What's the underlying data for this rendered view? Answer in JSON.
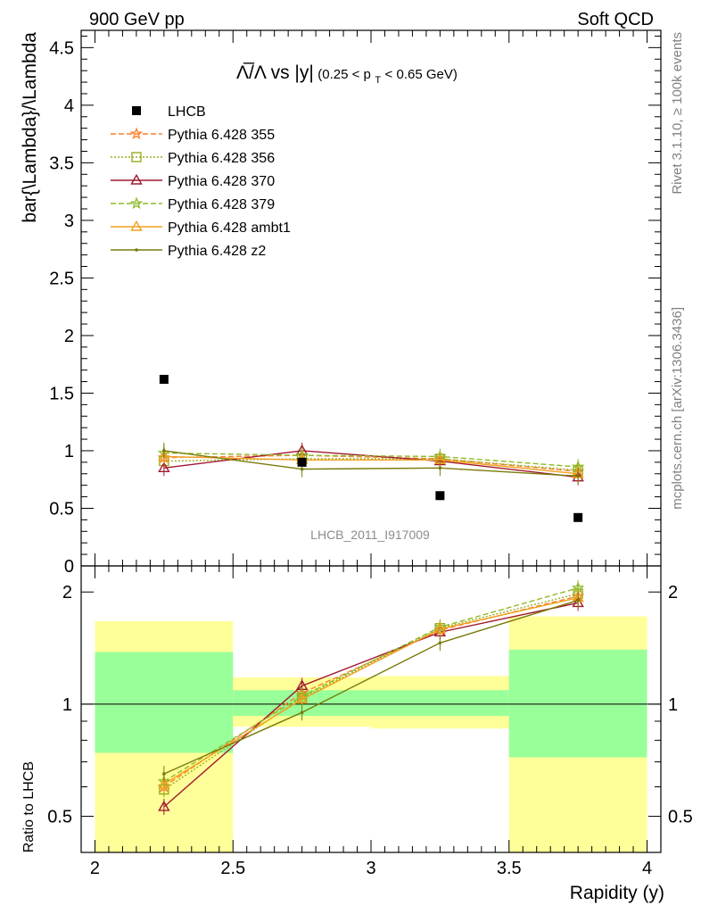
{
  "header": {
    "left": "900 GeV pp",
    "right": "Soft QCD"
  },
  "side_labels": {
    "rivet": "Rivet 3.1.10, ≥ 100k events",
    "mcplots": "mcplots.cern.ch [arXiv:1306.3436]"
  },
  "chart_data": [
    {
      "type": "scatter",
      "panel": "main",
      "title_main": "Λ̅/Λ vs |y|",
      "title_cut": "(0.25 < p",
      "title_cut_sub": "T",
      "title_cut_end": " < 0.65 GeV)",
      "ylabel": "bar{\\Lambda}/\\Lambda",
      "watermark": "LHCB_2011_I917009",
      "xlim": [
        1.95,
        4.05
      ],
      "ylim": [
        0,
        4.65
      ],
      "yticks": [
        "0",
        "0.5",
        "1",
        "1.5",
        "2",
        "2.5",
        "3",
        "3.5",
        "4",
        "4.5"
      ],
      "x": [
        2.25,
        2.75,
        3.25,
        3.75
      ],
      "series": [
        {
          "name": "LHCB",
          "color": "#000000",
          "style": "data",
          "values": [
            1.62,
            0.9,
            0.61,
            0.42
          ]
        },
        {
          "name": "Pythia 6.428 355",
          "color": "#ff7f2a",
          "style": "dashed",
          "marker": "star",
          "values": [
            0.94,
            0.96,
            0.93,
            0.82
          ]
        },
        {
          "name": "Pythia 6.428 356",
          "color": "#9aac1c",
          "style": "dotted",
          "marker": "square",
          "values": [
            0.91,
            0.93,
            0.93,
            0.83
          ]
        },
        {
          "name": "Pythia 6.428 370",
          "color": "#a0192e",
          "style": "solid",
          "marker": "triangle",
          "values": [
            0.85,
            1.0,
            0.91,
            0.77
          ]
        },
        {
          "name": "Pythia 6.428 379",
          "color": "#8fba2a",
          "style": "dashed",
          "marker": "star",
          "values": [
            0.98,
            0.96,
            0.95,
            0.86
          ]
        },
        {
          "name": "Pythia 6.428 ambt1",
          "color": "#f0a020",
          "style": "solid",
          "marker": "triangle",
          "values": [
            0.95,
            0.92,
            0.92,
            0.8
          ]
        },
        {
          "name": "Pythia 6.428 z2",
          "color": "#7a7a0a",
          "style": "solid",
          "marker": "dot",
          "values": [
            1.0,
            0.84,
            0.85,
            0.78
          ]
        }
      ]
    },
    {
      "type": "line",
      "panel": "ratio",
      "ylabel": "Ratio to LHCB",
      "xlabel": "Rapidity (y)",
      "xlim": [
        1.95,
        4.05
      ],
      "ylim_log": [
        0.4,
        2.35
      ],
      "yticks": [
        "0.5",
        "1",
        "2"
      ],
      "xticks": [
        "2",
        "2.5",
        "3",
        "3.5",
        "4"
      ],
      "bands": [
        {
          "x": [
            2.0,
            2.5
          ],
          "stat": [
            0.74,
            1.38
          ],
          "total": [
            0.35,
            1.67
          ]
        },
        {
          "x": [
            2.5,
            3.0
          ],
          "stat": [
            0.93,
            1.09
          ],
          "total": [
            0.87,
            1.18
          ]
        },
        {
          "x": [
            3.0,
            3.5
          ],
          "stat": [
            0.93,
            1.09
          ],
          "total": [
            0.86,
            1.19
          ]
        },
        {
          "x": [
            3.5,
            4.0
          ],
          "stat": [
            0.72,
            1.4
          ],
          "total": [
            0.35,
            1.72
          ]
        }
      ],
      "x": [
        2.25,
        2.75,
        3.25,
        3.75
      ],
      "series": [
        {
          "name": "Pythia 6.428 355",
          "values": [
            0.6,
            1.07,
            1.58,
            1.95
          ]
        },
        {
          "name": "Pythia 6.428 356",
          "values": [
            0.59,
            1.04,
            1.6,
            1.98
          ]
        },
        {
          "name": "Pythia 6.428 370",
          "values": [
            0.53,
            1.12,
            1.56,
            1.87
          ]
        },
        {
          "name": "Pythia 6.428 379",
          "values": [
            0.62,
            1.05,
            1.61,
            2.05
          ]
        },
        {
          "name": "Pythia 6.428 ambt1",
          "values": [
            0.61,
            1.03,
            1.59,
            1.93
          ]
        },
        {
          "name": "Pythia 6.428 z2",
          "values": [
            0.65,
            0.95,
            1.46,
            1.9
          ]
        }
      ]
    }
  ]
}
